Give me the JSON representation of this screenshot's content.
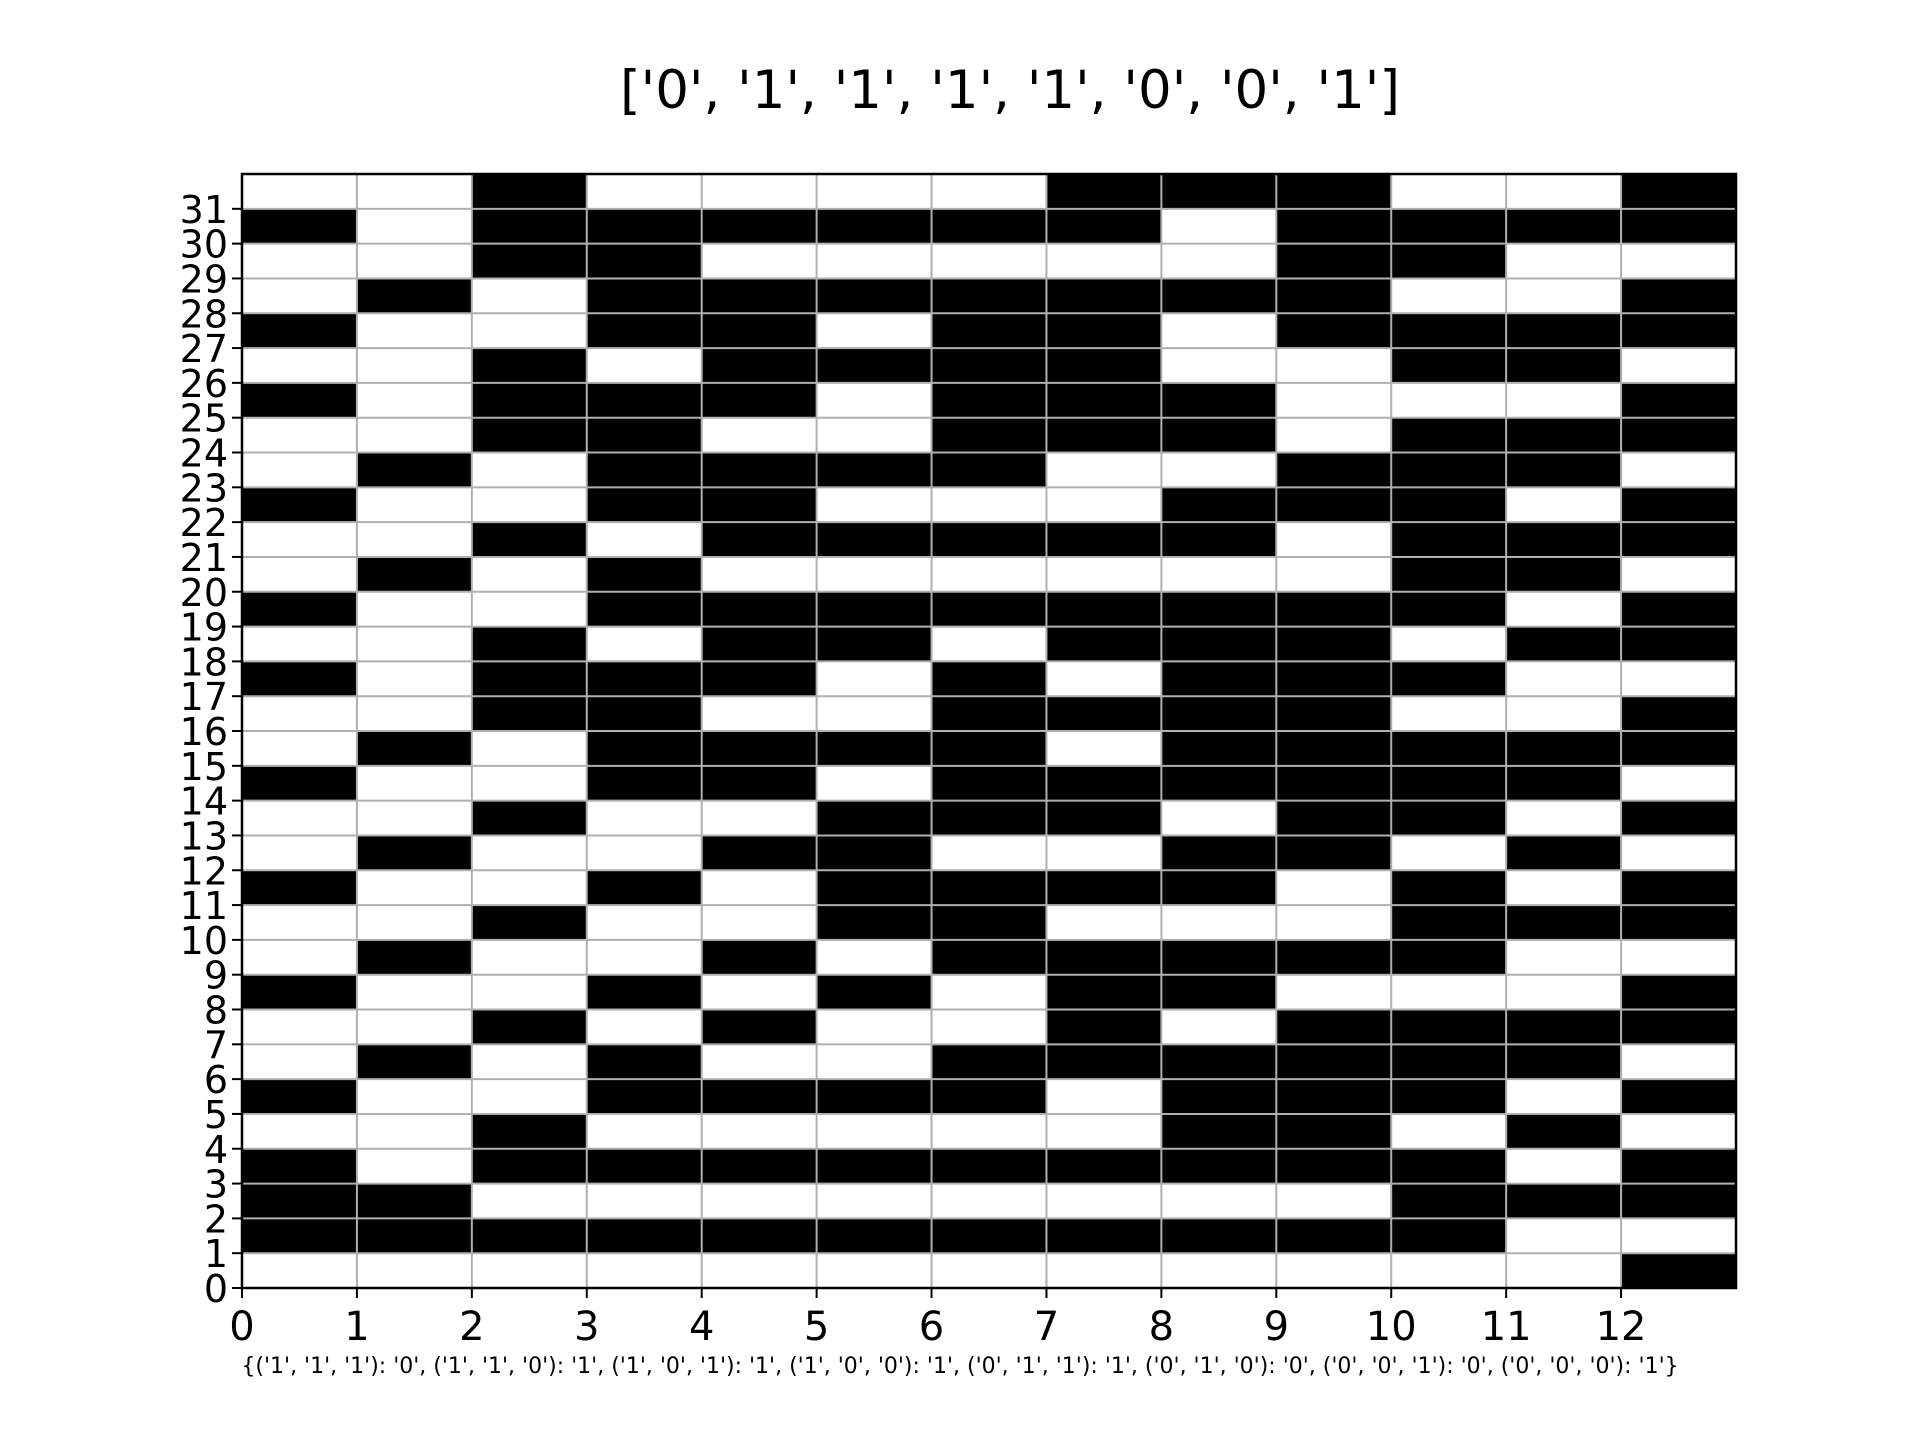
{
  "chart_data": {
    "type": "heatmap",
    "title": "['0', '1', '1', '1', '1', '0', '0', '1']",
    "xlabel": "{('1', '1', '1'): '0', ('1', '1', '0'): '1', ('1', '0', '1'): '1', ('1', '0', '0'): '1', ('0', '1', '1'): '1', ('0', '1', '0'): '0', ('0', '0', '1'): '0', ('0', '0', '0'): '1'}",
    "ylabel": "",
    "xlim": [
      0,
      13
    ],
    "ylim": [
      0,
      32
    ],
    "x_ticks": [
      0,
      1,
      2,
      3,
      4,
      5,
      6,
      7,
      8,
      9,
      10,
      11,
      12
    ],
    "y_ticks": [
      0,
      1,
      2,
      3,
      4,
      5,
      6,
      7,
      8,
      9,
      10,
      11,
      12,
      13,
      14,
      15,
      16,
      17,
      18,
      19,
      20,
      21,
      22,
      23,
      24,
      25,
      26,
      27,
      28,
      29,
      30,
      31
    ],
    "grid": true,
    "colors": {
      "1": "#000000",
      "0": "#ffffff",
      "grid": "#b0b0b0"
    },
    "rows": [
      "0010000111001",
      "1011111101111",
      "0011000001100",
      "0101111111001",
      "1001101101111",
      "0010111100110",
      "1011101110001",
      "0011001110111",
      "0101111001110",
      "1001100011101",
      "0010111110111",
      "0101000000110",
      "1001111111101",
      "0010110111011",
      "1011101011100",
      "0011001111001",
      "0101111011111",
      "1001101111110",
      "0010011101101",
      "0100110011010",
      "1001011110101",
      "0010011000111",
      "0100101111100",
      "1001010110001",
      "0010100101111",
      "0101001111110",
      "1001111011101",
      "0010000011010",
      "1011111111101",
      "1100000000111",
      "1111111111100",
      "0000000000001"
    ]
  }
}
